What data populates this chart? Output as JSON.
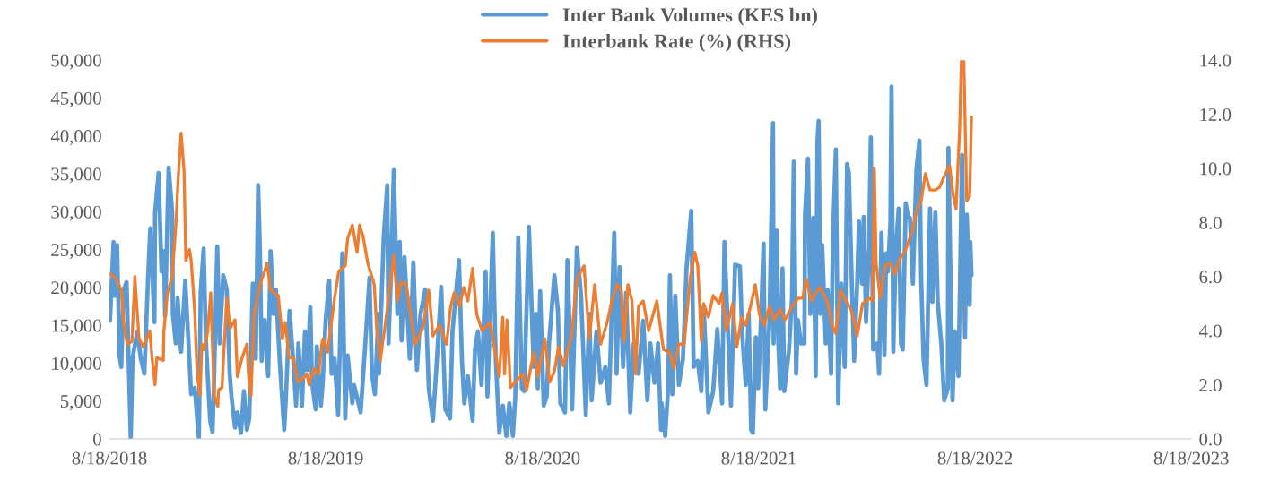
{
  "chart_data": {
    "type": "line",
    "legend": "top",
    "grid": false,
    "xlim": [
      "2018-08-18",
      "2023-08-18"
    ],
    "xticks": [
      {
        "value": "2018-08-18",
        "label": "8/18/2018"
      },
      {
        "value": "2019-08-18",
        "label": "8/18/2019"
      },
      {
        "value": "2020-08-18",
        "label": "8/18/2020"
      },
      {
        "value": "2021-08-18",
        "label": "8/18/2021"
      },
      {
        "value": "2022-08-18",
        "label": "8/18/2022"
      },
      {
        "value": "2023-08-18",
        "label": "8/18/2023"
      }
    ],
    "ylim": [
      0,
      50000
    ],
    "yticks": [
      {
        "value": 0,
        "label": "0"
      },
      {
        "value": 5000,
        "label": "5,000"
      },
      {
        "value": 10000,
        "label": "10,000"
      },
      {
        "value": 15000,
        "label": "15,000"
      },
      {
        "value": 20000,
        "label": "20,000"
      },
      {
        "value": 25000,
        "label": "25,000"
      },
      {
        "value": 30000,
        "label": "30,000"
      },
      {
        "value": 35000,
        "label": "35,000"
      },
      {
        "value": 40000,
        "label": "40,000"
      },
      {
        "value": 45000,
        "label": "45,000"
      },
      {
        "value": 50000,
        "label": "50,000"
      }
    ],
    "y2lim": [
      0,
      14
    ],
    "y2ticks": [
      {
        "value": 0,
        "label": "0.0"
      },
      {
        "value": 2,
        "label": "2.0"
      },
      {
        "value": 4,
        "label": "4.0"
      },
      {
        "value": 6,
        "label": "6.0"
      },
      {
        "value": 8,
        "label": "8.0"
      },
      {
        "value": 10,
        "label": "10.0"
      },
      {
        "value": 12,
        "label": "12.0"
      },
      {
        "value": 14,
        "label": "14.0"
      }
    ],
    "series": [
      {
        "name": "Inter Bank Volumes (KES bn)",
        "type": "line",
        "color": "#5b9bd5",
        "x": [
          "2018-08-19",
          "2018-08-25",
          "2018-08-27",
          "2018-08-31",
          "2018-09-04",
          "2018-09-07",
          "2018-09-11",
          "2018-09-16",
          "2018-09-19",
          "2018-09-23",
          "2018-09-26",
          "2018-10-04",
          "2018-10-10",
          "2018-10-16",
          "2018-10-22",
          "2018-10-26",
          "2018-11-02",
          "2018-11-03",
          "2018-11-09",
          "2018-11-14",
          "2018-11-18",
          "2018-11-20",
          "2018-11-26",
          "2018-12-02",
          "2018-12-03",
          "2018-12-08",
          "2018-12-11",
          "2018-12-17",
          "2018-12-24",
          "2018-12-29",
          "2019-01-03",
          "2019-01-09",
          "2019-01-16",
          "2019-01-19",
          "2019-01-24",
          "2019-01-28",
          "2019-02-04",
          "2019-02-08",
          "2019-02-10",
          "2019-02-16",
          "2019-02-20",
          "2019-02-26",
          "2019-03-04",
          "2019-03-09",
          "2019-03-12",
          "2019-03-18",
          "2019-03-22",
          "2019-03-28",
          "2019-04-02",
          "2019-04-07",
          "2019-04-11",
          "2019-04-17",
          "2019-04-22",
          "2019-04-26",
          "2019-04-29",
          "2019-05-02",
          "2019-05-07",
          "2019-05-13",
          "2019-05-17",
          "2019-05-22",
          "2019-05-26",
          "2019-06-02",
          "2019-06-09",
          "2019-06-12",
          "2019-06-18",
          "2019-06-24",
          "2019-06-29",
          "2019-07-03",
          "2019-07-09",
          "2019-07-14",
          "2019-07-18",
          "2019-07-23",
          "2019-07-26",
          "2019-08-01",
          "2019-08-03",
          "2019-08-10",
          "2019-08-13",
          "2019-08-18",
          "2019-08-24",
          "2019-08-28",
          "2019-09-02",
          "2019-09-08",
          "2019-09-15",
          "2019-09-20",
          "2019-09-24",
          "2019-10-02",
          "2019-10-05",
          "2019-10-16",
          "2019-10-23",
          "2019-10-31",
          "2019-11-04",
          "2019-11-09",
          "2019-11-15",
          "2019-11-16",
          "2019-11-24",
          "2019-11-30",
          "2019-12-02",
          "2019-12-06",
          "2019-12-11",
          "2019-12-17",
          "2019-12-21",
          "2019-12-24",
          "2019-12-29",
          "2020-01-07",
          "2020-01-13",
          "2020-01-19",
          "2020-01-25",
          "2020-02-02",
          "2020-02-08",
          "2020-02-15",
          "2020-02-21",
          "2020-02-29",
          "2020-03-07",
          "2020-03-15",
          "2020-03-19",
          "2020-03-30",
          "2020-04-04",
          "2020-04-08",
          "2020-04-14",
          "2020-04-22",
          "2020-04-26",
          "2020-05-01",
          "2020-05-07",
          "2020-05-14",
          "2020-05-17",
          "2020-05-26",
          "2020-05-31",
          "2020-06-06",
          "2020-06-12",
          "2020-06-18",
          "2020-06-23",
          "2020-06-29",
          "2020-07-03",
          "2020-07-08",
          "2020-07-14",
          "2020-07-18",
          "2020-07-26",
          "2020-08-03",
          "2020-08-07",
          "2020-08-10",
          "2020-08-14",
          "2020-08-20",
          "2020-08-25",
          "2020-08-29",
          "2020-09-07",
          "2020-09-13",
          "2020-09-17",
          "2020-09-25",
          "2020-09-29",
          "2020-10-07",
          "2020-10-15",
          "2020-10-22",
          "2020-10-30",
          "2020-11-05",
          "2020-11-09",
          "2020-11-17",
          "2020-11-24",
          "2020-12-02",
          "2020-12-08",
          "2020-12-17",
          "2020-12-21",
          "2020-12-26",
          "2021-01-01",
          "2021-01-06",
          "2021-01-13",
          "2021-01-19",
          "2021-01-27",
          "2021-02-04",
          "2021-02-11",
          "2021-02-16",
          "2021-02-23",
          "2021-03-01",
          "2021-03-06",
          "2021-03-07",
          "2021-03-13",
          "2021-03-18",
          "2021-03-21",
          "2021-03-25",
          "2021-03-30",
          "2021-04-05",
          "2021-04-12",
          "2021-04-18",
          "2021-04-26",
          "2021-04-30",
          "2021-05-07",
          "2021-05-13",
          "2021-05-17",
          "2021-05-25",
          "2021-06-02",
          "2021-06-09",
          "2021-06-17",
          "2021-06-21",
          "2021-06-27",
          "2021-07-02",
          "2021-07-09",
          "2021-07-17",
          "2021-07-21",
          "2021-07-27",
          "2021-08-01",
          "2021-08-05",
          "2021-08-08",
          "2021-08-13",
          "2021-08-17",
          "2021-08-22",
          "2021-08-26",
          "2021-08-29",
          "2021-09-05",
          "2021-09-09",
          "2021-09-11",
          "2021-09-12",
          "2021-09-17",
          "2021-09-20",
          "2021-09-23",
          "2021-09-27",
          "2021-09-30",
          "2021-10-08",
          "2021-10-13",
          "2021-10-16",
          "2021-10-20",
          "2021-10-23",
          "2021-10-28",
          "2021-11-03",
          "2021-11-04",
          "2021-11-09",
          "2021-11-13",
          "2021-11-18",
          "2021-11-22",
          "2021-11-25",
          "2021-11-27",
          "2021-11-30",
          "2021-12-03",
          "2021-12-09",
          "2021-12-12",
          "2021-12-18",
          "2021-12-21",
          "2021-12-26",
          "2021-12-30",
          "2022-01-04",
          "2022-01-10",
          "2022-01-14",
          "2022-01-17",
          "2022-01-22",
          "2022-01-26",
          "2022-01-31",
          "2022-02-03",
          "2022-02-08",
          "2022-02-11",
          "2022-02-15",
          "2022-02-20",
          "2022-02-23",
          "2022-02-27",
          "2022-03-06",
          "2022-03-09",
          "2022-03-13",
          "2022-03-18",
          "2022-03-21",
          "2022-03-24",
          "2022-03-28",
          "2022-03-30",
          "2022-04-02",
          "2022-04-06",
          "2022-04-11",
          "2022-04-15",
          "2022-04-18",
          "2022-04-23",
          "2022-04-27",
          "2022-04-30",
          "2022-05-05",
          "2022-05-11",
          "2022-05-16",
          "2022-05-19",
          "2022-05-23",
          "2022-05-28",
          "2022-06-03",
          "2022-06-07",
          "2022-06-12",
          "2022-06-16",
          "2022-06-22",
          "2022-06-27",
          "2022-07-03",
          "2022-07-04",
          "2022-07-11",
          "2022-07-15",
          "2022-07-21",
          "2022-07-27",
          "2022-08-01",
          "2022-08-04",
          "2022-08-09",
          "2022-08-10",
          "2022-08-12"
        ],
        "values": [
          15600,
          26000,
          18900,
          25600,
          11000,
          9500,
          19700,
          20700,
          11800,
          0,
          10600,
          14200,
          10600,
          8600,
          20900,
          27800,
          15400,
          29800,
          35100,
          22100,
          24800,
          16200,
          35800,
          29900,
          16500,
          12600,
          18600,
          11500,
          20900,
          13400,
          5900,
          6700,
          0,
          19300,
          25100,
          12600,
          2400,
          900,
          5900,
          25400,
          12600,
          21600,
          19700,
          8600,
          5600,
          1500,
          3500,
          800,
          6300,
          1200,
          2700,
          20500,
          10600,
          33500,
          25200,
          10300,
          15700,
          8300,
          24800,
          16500,
          19700,
          9500,
          1200,
          5600,
          16900,
          10600,
          4400,
          12600,
          4400,
          14200,
          9100,
          17400,
          7400,
          3900,
          12200,
          4400,
          7400,
          15700,
          20900,
          8600,
          10600,
          3200,
          24500,
          2700,
          11000,
          4700,
          7100,
          3500,
          11500,
          21300,
          8600,
          5900,
          16500,
          8600,
          26800,
          33500,
          12600,
          21300,
          35500,
          16500,
          26000,
          13000,
          24000,
          10600,
          23300,
          9100,
          16500,
          19700,
          6700,
          2400,
          9500,
          20100,
          3900,
          2700,
          14200,
          23600,
          10300,
          4700,
          8300,
          2400,
          11800,
          14200,
          7100,
          22100,
          5600,
          27200,
          10600,
          800,
          4400,
          400,
          4700,
          400,
          5600,
          26600,
          6700,
          6300,
          28000,
          9500,
          16500,
          6700,
          19500,
          4400,
          5600,
          12600,
          21600,
          16900,
          4700,
          3500,
          23600,
          3900,
          25200,
          18900,
          3200,
          16500,
          5100,
          14200,
          7400,
          9500,
          4700,
          27200,
          8600,
          22700,
          9500,
          19300,
          3500,
          12600,
          8600,
          15600,
          5100,
          12600,
          7400,
          12600,
          1200,
          4700,
          400,
          6700,
          21600,
          5900,
          18900,
          7100,
          10600,
          22500,
          30100,
          9500,
          10300,
          6300,
          17400,
          3500,
          6300,
          14500,
          4700,
          26000,
          14200,
          4400,
          23000,
          22800,
          13800,
          7100,
          16500,
          1200,
          800,
          13400,
          6700,
          16500,
          25800,
          3900,
          15700,
          32300,
          41700,
          12600,
          27500,
          12600,
          6700,
          22500,
          6300,
          11800,
          18600,
          36600,
          8600,
          15700,
          12600,
          12600,
          29600,
          37000,
          16500,
          29200,
          8300,
          39400,
          42000,
          16500,
          25600,
          12600,
          19700,
          8600,
          26400,
          38200,
          4700,
          20500,
          9500,
          36300,
          35100,
          20500,
          10300,
          20500,
          28700,
          20500,
          29300,
          15400,
          25200,
          39800,
          11800,
          12600,
          8600,
          27200,
          11000,
          24500,
          22100,
          28400,
          46500,
          11500,
          24500,
          30400,
          12600,
          11800,
          31100,
          29200,
          29200,
          20500,
          35500,
          39400,
          21300,
          10600,
          7100,
          30400,
          18100,
          29900,
          18100,
          12600,
          5100,
          6700,
          38400,
          5100,
          14200,
          8300,
          37500,
          13400,
          29600,
          17700,
          26000,
          21600
        ]
      },
      {
        "name": "Interbank Rate (%) (RHS)",
        "type": "line",
        "axis": "y2",
        "color": "#ed7d31",
        "x": [
          "2018-08-20",
          "2018-08-30",
          "2018-09-07",
          "2018-09-11",
          "2018-09-17",
          "2018-09-25",
          "2018-09-30",
          "2018-10-07",
          "2018-10-14",
          "2018-10-25",
          "2018-10-29",
          "2018-11-03",
          "2018-11-06",
          "2018-11-17",
          "2018-11-18",
          "2018-11-24",
          "2018-12-02",
          "2018-12-09",
          "2018-12-12",
          "2018-12-17",
          "2018-12-22",
          "2018-12-25",
          "2018-12-31",
          "2019-01-03",
          "2019-01-09",
          "2019-01-13",
          "2019-01-18",
          "2019-01-21",
          "2019-01-25",
          "2019-01-31",
          "2019-02-05",
          "2019-02-08",
          "2019-02-11",
          "2019-02-17",
          "2019-02-18",
          "2019-02-24",
          "2019-03-04",
          "2019-03-10",
          "2019-03-18",
          "2019-03-22",
          "2019-03-30",
          "2019-04-07",
          "2019-04-10",
          "2019-04-14",
          "2019-04-19",
          "2019-04-29",
          "2019-05-10",
          "2019-05-11",
          "2019-05-17",
          "2019-05-30",
          "2019-06-06",
          "2019-06-11",
          "2019-06-17",
          "2019-06-24",
          "2019-07-02",
          "2019-07-09",
          "2019-07-17",
          "2019-07-21",
          "2019-07-29",
          "2019-08-06",
          "2019-08-12",
          "2019-08-14",
          "2019-08-21",
          "2019-09-02",
          "2019-09-09",
          "2019-09-20",
          "2019-09-24",
          "2019-10-02",
          "2019-10-10",
          "2019-10-14",
          "2019-10-20",
          "2019-10-28",
          "2019-11-08",
          "2019-11-12",
          "2019-11-18",
          "2019-11-27",
          "2019-12-11",
          "2019-12-17",
          "2019-12-23",
          "2020-01-01",
          "2020-01-16",
          "2020-01-29",
          "2020-02-08",
          "2020-02-15",
          "2020-02-26",
          "2020-03-09",
          "2020-03-16",
          "2020-03-22",
          "2020-03-31",
          "2020-04-07",
          "2020-04-14",
          "2020-04-22",
          "2020-04-29",
          "2020-05-08",
          "2020-05-22",
          "2020-05-29",
          "2020-06-06",
          "2020-06-12",
          "2020-06-15",
          "2020-06-19",
          "2020-06-25",
          "2020-07-07",
          "2020-07-16",
          "2020-07-22",
          "2020-08-03",
          "2020-08-09",
          "2020-08-10",
          "2020-08-22",
          "2020-08-30",
          "2020-09-07",
          "2020-09-14",
          "2020-09-22",
          "2020-10-06",
          "2020-10-15",
          "2020-10-27",
          "2020-11-05",
          "2020-11-14",
          "2020-11-24",
          "2020-12-05",
          "2020-12-13",
          "2020-12-22",
          "2020-12-29",
          "2021-01-03",
          "2021-01-09",
          "2021-01-16",
          "2021-01-22",
          "2021-01-27",
          "2021-02-04",
          "2021-02-13",
          "2021-02-27",
          "2021-03-10",
          "2021-03-21",
          "2021-03-28",
          "2021-04-05",
          "2021-04-14",
          "2021-04-24",
          "2021-05-02",
          "2021-05-07",
          "2021-05-13",
          "2021-05-17",
          "2021-05-25",
          "2021-06-02",
          "2021-06-12",
          "2021-06-17",
          "2021-06-24",
          "2021-07-05",
          "2021-07-12",
          "2021-07-20",
          "2021-07-27",
          "2021-08-04",
          "2021-08-12",
          "2021-08-19",
          "2021-08-27",
          "2021-09-05",
          "2021-09-13",
          "2021-09-23",
          "2021-10-01",
          "2021-10-11",
          "2021-10-23",
          "2021-10-31",
          "2021-11-06",
          "2021-11-15",
          "2021-11-22",
          "2021-11-30",
          "2021-12-11",
          "2021-12-20",
          "2021-12-26",
          "2022-01-03",
          "2022-01-12",
          "2022-01-22",
          "2022-01-31",
          "2022-02-09",
          "2022-02-21",
          "2022-02-26",
          "2022-03-01",
          "2022-03-04",
          "2022-03-11",
          "2022-03-19",
          "2022-03-28",
          "2022-04-05",
          "2022-04-12",
          "2022-04-23",
          "2022-05-04",
          "2022-05-11",
          "2022-05-19",
          "2022-05-26",
          "2022-06-03",
          "2022-06-12",
          "2022-06-19",
          "2022-06-27",
          "2022-07-06",
          "2022-07-12",
          "2022-07-17",
          "2022-07-23",
          "2022-07-26",
          "2022-07-30",
          "2022-08-04",
          "2022-08-09",
          "2022-08-12"
        ],
        "values": [
          6.1,
          5.9,
          5.5,
          4.3,
          3.5,
          3.6,
          6.0,
          3.7,
          3.4,
          4.0,
          3.0,
          2.0,
          3.0,
          2.9,
          4.0,
          5.4,
          6.0,
          8.2,
          9.6,
          11.3,
          9.9,
          6.6,
          7.0,
          6.6,
          4.7,
          2.4,
          1.6,
          3.5,
          3.3,
          4.0,
          5.4,
          3.4,
          1.6,
          1.2,
          1.8,
          1.9,
          5.2,
          4.1,
          4.4,
          2.3,
          3.0,
          3.5,
          2.3,
          1.6,
          4.6,
          5.7,
          6.4,
          6.5,
          5.5,
          5.3,
          3.7,
          4.3,
          3.0,
          3.0,
          2.1,
          2.2,
          2.4,
          2.0,
          2.6,
          2.4,
          3.6,
          3.7,
          3.2,
          5.2,
          6.2,
          6.4,
          7.4,
          7.9,
          6.9,
          7.9,
          7.5,
          6.5,
          5.7,
          4.1,
          2.9,
          4.3,
          6.8,
          5.1,
          5.8,
          5.7,
          3.5,
          4.1,
          5.5,
          3.8,
          4.2,
          3.5,
          4.9,
          5.4,
          4.9,
          5.6,
          5.1,
          6.3,
          4.6,
          4.0,
          4.3,
          3.3,
          2.3,
          4.5,
          2.4,
          4.4,
          1.9,
          2.2,
          2.4,
          1.8,
          3.2,
          2.6,
          2.3,
          3.7,
          2.1,
          2.5,
          3.4,
          2.7,
          3.8,
          5.9,
          6.4,
          3.7,
          5.7,
          3.5,
          4.3,
          5.1,
          5.7,
          5.5,
          3.6,
          5.7,
          5.1,
          2.4,
          4.9,
          5.1,
          4.0,
          5.1,
          3.3,
          3.2,
          2.6,
          3.5,
          3.5,
          5.9,
          6.9,
          6.4,
          3.6,
          5.0,
          4.5,
          5.3,
          5.0,
          5.4,
          4.0,
          5.0,
          3.4,
          4.5,
          4.2,
          4.9,
          5.7,
          4.6,
          4.2,
          4.9,
          4.4,
          4.8,
          4.4,
          4.8,
          5.2,
          5.2,
          5.9,
          5.1,
          5.4,
          5.6,
          5.1,
          4.2,
          3.9,
          5.5,
          5.1,
          4.7,
          3.8,
          5.0,
          5.2,
          5.1,
          10.0,
          6.5,
          5.2,
          6.4,
          6.5,
          6.1,
          6.6,
          7.0,
          7.7,
          8.4,
          8.8,
          9.8,
          9.2,
          9.2,
          9.3,
          9.7,
          10.1,
          9.0,
          8.5,
          11.5,
          14.0,
          14.0,
          8.8,
          9.0,
          11.9
        ]
      }
    ]
  }
}
